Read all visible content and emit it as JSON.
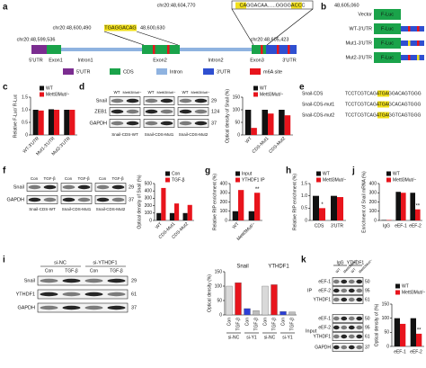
{
  "panel_labels": [
    "a",
    "b",
    "c",
    "d",
    "e",
    "f",
    "g",
    "h",
    "i",
    "j",
    "k"
  ],
  "gene_map": {
    "inset_left": "chr20:48,604,770",
    "inset_seq": "CAGGACAA......GGGGACCC",
    "inset_right": "48,605,060",
    "exon2_left": "chr20:48,600,490",
    "exon2_seq": "TGAGGACAG",
    "exon2_right": "48,600,630",
    "gene_left": "chr20:48,599,536",
    "gene_right": "chr20:48,605,423",
    "regions": [
      "5'UTR",
      "Exon1",
      "Intron1",
      "Exon2",
      "Intron2",
      "Exon3",
      "3'UTR"
    ],
    "legend": [
      "5'UTR",
      "CDS",
      "Intron",
      "3'UTR",
      "m6A site"
    ]
  },
  "constructs": {
    "rows": [
      "Vector",
      "WT-3'UTR",
      "Mut1-3'UTR",
      "Mut2-3'UTR"
    ],
    "reporter": "F-Luc"
  },
  "sequences": {
    "rows": [
      {
        "name": "Snail-CDS",
        "seq": "TCCTCGTCAGATGAGGACAGTGGG"
      },
      {
        "name": "Snail-CDS-mut1",
        "seq": "TCCTCGTCAGATGAGCACAGTGGG"
      },
      {
        "name": "Snail-CDS-mut2",
        "seq": "TCCTCGTCAGATGAGGTCAGTGGG"
      }
    ]
  },
  "blots_d": {
    "groups": [
      "WT",
      "Mettl3Mut/−"
    ],
    "rows": [
      "Snail",
      "ZEB1",
      "GAPDH"
    ],
    "sizes": [
      "29",
      "124",
      "37"
    ],
    "constructs": [
      "Snail-CDS-WT",
      "Snail-CDS-Mut1",
      "Snail-CDS-Mut2"
    ]
  },
  "blots_f": {
    "groups": [
      "Con",
      "TGF-β"
    ],
    "rows": [
      "Snail",
      "GAPDH"
    ],
    "sizes": [
      "29",
      "37"
    ],
    "constructs": [
      "Snail-CDS-WT",
      "Snail-CDS-Mut1",
      "Snail-CDS-Mut2"
    ]
  },
  "blots_i": {
    "groups": [
      "si-NC",
      "si-YTHDF1"
    ],
    "conditions": [
      "Con",
      "TGF-β"
    ],
    "rows": [
      "Snail",
      "YTHDF1",
      "GAPDH"
    ],
    "sizes": [
      "29",
      "61",
      "37"
    ]
  },
  "blots_k": {
    "groups": [
      "IgG",
      "YTHDF1"
    ],
    "lanes": [
      "WT",
      "Mettl3Mut/−"
    ],
    "sections": [
      "IP",
      "Input"
    ],
    "ip_rows": [
      "eEF-1",
      "eEF-2",
      "YTHDF1"
    ],
    "ip_sizes": [
      "50",
      "95",
      "61"
    ],
    "input_rows": [
      "eEF-1",
      "eEF-2",
      "YTHDF1",
      "GAPDH"
    ],
    "input_sizes": [
      "50",
      "95",
      "61",
      "37"
    ]
  },
  "chart_data": [
    {
      "type": "bar",
      "ylabel": "Relative F-Luc/ R-Luc",
      "categories": [
        "WT-3'UTR",
        "Mut1-3'UTR",
        "Mut2-3'UTR"
      ],
      "series": [
        {
          "name": "WT",
          "color": "#111111",
          "values": [
            1,
            1.02,
            1
          ]
        },
        {
          "name": "Mettl3Mut/−",
          "color": "#e8141c",
          "values": [
            0.97,
            1,
            1
          ]
        }
      ],
      "ylim": [
        0,
        1.5
      ],
      "yticks": [
        0,
        0.5,
        {
          "value": 1,
          "label": "1.0"
        },
        1.5
      ]
    },
    {
      "type": "bar",
      "ylabel": "Optical density of Snail (%)",
      "categories": [
        "WT",
        "CDS-Mut1",
        "CDS-Mut2"
      ],
      "series": [
        {
          "name": "WT",
          "color": "#111111",
          "values": [
            100,
            100,
            100
          ]
        },
        {
          "name": "Mettl3Mut/−",
          "color": "#e8141c",
          "values": [
            28,
            85,
            78
          ]
        }
      ],
      "ylim": [
        0,
        150
      ],
      "yticks": [
        0,
        50,
        100,
        150
      ]
    },
    {
      "type": "bar",
      "ylabel": "Optical density of Snail (%)",
      "categories": [
        "WT",
        "CDS-Mut1",
        "CDS-Mut2"
      ],
      "series": [
        {
          "name": "Con",
          "color": "#111111",
          "values": [
            100,
            100,
            100
          ]
        },
        {
          "name": "TGF-β",
          "color": "#e8141c",
          "values": [
            440,
            230,
            210
          ]
        }
      ],
      "ylim": [
        0,
        500
      ],
      "yticks": [
        0,
        100,
        200,
        300,
        400,
        500
      ]
    },
    {
      "type": "bar",
      "ylabel": "Relative RIP enrichment (%)",
      "categories": [
        "WT",
        "Mettl3Mut/−"
      ],
      "series": [
        {
          "name": "Input",
          "color": "#111111",
          "values": [
            100,
            100
          ]
        },
        {
          "name": "YTHDF1 IP",
          "color": "#e8141c",
          "values": [
            330,
            300
          ]
        }
      ],
      "ylim": [
        0,
        400
      ],
      "yticks": [
        0,
        100,
        200,
        300,
        400
      ],
      "annotations": [
        "**"
      ]
    },
    {
      "type": "bar",
      "ylabel": "Relative RIP enrichment (%)",
      "categories": [
        "CDS",
        "3'UTR"
      ],
      "series": [
        {
          "name": "WT",
          "color": "#111111",
          "values": [
            1,
            1
          ]
        },
        {
          "name": "Mettl3Mut/−",
          "color": "#e8141c",
          "values": [
            0.5,
            0.95
          ]
        }
      ],
      "ylim": [
        0,
        1.5
      ],
      "yticks": [
        0,
        0.5,
        {
          "value": 1,
          "label": "1.0"
        },
        1.5
      ],
      "annotations": [
        "*"
      ]
    },
    {
      "type": "bar",
      "ylabel": "Enrichment of Snail mRNA (%)",
      "categories": [
        "IgG",
        "eEF-1",
        "eEF-2"
      ],
      "series": [
        {
          "name": "WT",
          "color": "#111111",
          "values": [
            5,
            310,
            300
          ]
        },
        {
          "name": "Mettl3Mut/−",
          "color": "#e8141c",
          "values": [
            5,
            300,
            120
          ]
        }
      ],
      "ylim": [
        0,
        400
      ],
      "yticks": [
        0,
        100,
        200,
        300,
        400
      ],
      "annotations": [
        "**"
      ]
    },
    {
      "type": "bar",
      "ylabel": "Optical density (%)",
      "groups": [
        "Snail",
        "YTHDF1"
      ],
      "subgroups": [
        "si-NC",
        "si-Y1"
      ],
      "categories": [
        "Con",
        "TGF-β",
        "Con",
        "TGF-β",
        "Con",
        "TGF-β",
        "Con",
        "TGF-β"
      ],
      "values": [
        100,
        112,
        22,
        15,
        100,
        105,
        12,
        10
      ],
      "colors": [
        "#d9d9d9",
        "#e8141c",
        "#2c3fd6",
        "#bdbdbd",
        "#d9d9d9",
        "#e8141c",
        "#2c3fd6",
        "#bdbdbd"
      ],
      "ylim": [
        0,
        150
      ],
      "yticks": [
        0,
        50,
        100,
        150
      ]
    },
    {
      "type": "bar",
      "ylabel": "Optical density of (%)",
      "categories": [
        "eEF-1",
        "eEF-2"
      ],
      "series": [
        {
          "name": "WT",
          "color": "#111111",
          "values": [
            100,
            100
          ]
        },
        {
          "name": "Mettl3Mut/−",
          "color": "#e8141c",
          "values": [
            80,
            45
          ]
        }
      ],
      "ylim": [
        0,
        150
      ],
      "yticks": [
        0,
        50,
        100,
        150
      ],
      "annotations": [
        "**"
      ]
    }
  ]
}
